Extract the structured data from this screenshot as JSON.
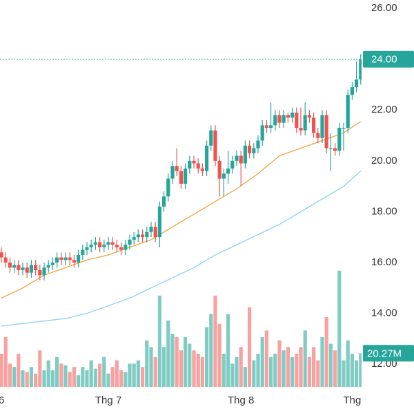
{
  "chart_data": {
    "type": "candlestick",
    "categories": [
      "6",
      null,
      null,
      null,
      null,
      null,
      null,
      null,
      null,
      null,
      null,
      null,
      null,
      null,
      null,
      null,
      null,
      null,
      null,
      null,
      null,
      null,
      null,
      null,
      null,
      "Thg 7",
      null,
      null,
      null,
      null,
      null,
      null,
      null,
      null,
      null,
      null,
      null,
      null,
      null,
      null,
      null,
      null,
      null,
      null,
      null,
      null,
      null,
      null,
      null,
      null,
      null,
      null,
      null,
      null,
      null,
      null,
      "Thg 8",
      null,
      null,
      null,
      null,
      null,
      null,
      null,
      null,
      null,
      null,
      null,
      null,
      null,
      null,
      null,
      null,
      null,
      null,
      null,
      null,
      null,
      null,
      null,
      null,
      null,
      "Thg",
      null,
      null
    ],
    "open": [
      16.4,
      16.2,
      16.0,
      15.8,
      15.9,
      15.7,
      15.8,
      15.6,
      15.9,
      15.7,
      15.5,
      15.8,
      15.9,
      16.0,
      16.2,
      16.1,
      16.2,
      16.1,
      16.0,
      16.3,
      16.5,
      16.6,
      16.7,
      16.8,
      16.6,
      16.7,
      16.8,
      16.7,
      16.6,
      16.5,
      16.7,
      16.9,
      17.0,
      17.1,
      17.0,
      17.2,
      17.4,
      17.0,
      18.2,
      18.6,
      19.3,
      19.8,
      19.6,
      19.1,
      19.7,
      20.0,
      19.9,
      19.7,
      19.6,
      20.6,
      21.2,
      20.0,
      19.3,
      19.5,
      19.7,
      20.0,
      20.2,
      19.9,
      20.6,
      20.3,
      20.5,
      20.8,
      21.4,
      21.3,
      21.4,
      21.8,
      21.5,
      21.8,
      21.7,
      21.9,
      21.3,
      21.2,
      21.8,
      21.7,
      21.1,
      20.9,
      21.8,
      20.5,
      20.5,
      20.4,
      21.3,
      21.3,
      22.6,
      22.9,
      23.2
    ],
    "high": [
      16.6,
      16.4,
      16.2,
      16.1,
      16.1,
      16.0,
      16.0,
      16.1,
      16.1,
      15.9,
      16.0,
      16.1,
      16.2,
      16.4,
      16.4,
      16.4,
      16.4,
      16.3,
      16.5,
      16.7,
      16.8,
      16.9,
      17.0,
      17.0,
      16.9,
      17.0,
      17.0,
      16.9,
      16.8,
      16.9,
      17.1,
      17.2,
      17.3,
      17.3,
      17.4,
      17.6,
      17.6,
      18.4,
      18.8,
      19.5,
      20.0,
      20.5,
      19.8,
      19.9,
      20.2,
      20.2,
      20.1,
      19.9,
      20.8,
      21.4,
      21.4,
      20.2,
      19.7,
      20.4,
      20.2,
      20.4,
      20.4,
      20.8,
      20.8,
      20.7,
      21.0,
      21.6,
      21.6,
      22.3,
      22.0,
      22.0,
      22.0,
      21.9,
      22.1,
      22.1,
      22.1,
      22.3,
      22.0,
      21.9,
      21.3,
      22.0,
      22.0,
      21.1,
      20.7,
      21.5,
      21.5,
      22.8,
      23.1,
      23.9,
      24.2
    ],
    "low": [
      16.0,
      15.8,
      15.6,
      15.6,
      15.5,
      15.5,
      15.4,
      15.4,
      15.5,
      15.3,
      15.3,
      15.6,
      15.7,
      15.8,
      15.9,
      15.9,
      15.9,
      15.8,
      15.8,
      16.1,
      16.3,
      16.4,
      16.5,
      16.4,
      16.4,
      16.5,
      16.5,
      16.4,
      16.3,
      16.3,
      16.5,
      16.7,
      16.8,
      16.8,
      16.8,
      17.0,
      16.8,
      16.6,
      18.0,
      18.4,
      19.1,
      19.4,
      18.9,
      18.9,
      19.5,
      19.7,
      19.5,
      19.4,
      19.4,
      20.4,
      19.8,
      18.6,
      18.6,
      19.1,
      19.5,
      19.8,
      19.0,
      19.7,
      20.1,
      20.1,
      20.3,
      20.6,
      21.1,
      21.1,
      21.2,
      21.3,
      21.3,
      21.5,
      21.5,
      21.1,
      21.0,
      21.0,
      21.5,
      20.9,
      20.7,
      20.7,
      20.3,
      19.6,
      20.2,
      20.2,
      20.4,
      21.1,
      22.4,
      22.7,
      23.0
    ],
    "close": [
      16.2,
      16.0,
      15.8,
      15.9,
      15.7,
      15.8,
      15.6,
      15.9,
      15.7,
      15.5,
      15.8,
      15.9,
      16.0,
      16.2,
      16.1,
      16.2,
      16.1,
      16.0,
      16.3,
      16.5,
      16.6,
      16.7,
      16.8,
      16.6,
      16.7,
      16.8,
      16.7,
      16.6,
      16.5,
      16.7,
      16.9,
      17.0,
      17.1,
      17.0,
      17.2,
      17.4,
      17.0,
      18.2,
      18.6,
      19.3,
      19.8,
      19.6,
      19.1,
      19.7,
      20.0,
      19.9,
      19.7,
      19.6,
      20.6,
      21.2,
      20.0,
      19.3,
      19.5,
      19.7,
      20.0,
      20.2,
      19.9,
      20.6,
      20.3,
      20.5,
      20.8,
      21.4,
      21.3,
      21.4,
      21.8,
      21.5,
      21.8,
      21.7,
      21.9,
      21.3,
      21.2,
      21.8,
      21.7,
      21.1,
      20.9,
      21.8,
      20.5,
      20.5,
      20.4,
      21.3,
      21.3,
      22.6,
      22.9,
      23.2,
      24.0
    ],
    "up_color": "#26a69a",
    "down_color": "#ef5350",
    "ylim": [
      10.97,
      26.33
    ],
    "yticks": [
      {
        "value": 12,
        "label": "12.00"
      },
      {
        "value": 14,
        "label": "14.00"
      },
      {
        "value": 16,
        "label": "16.00"
      },
      {
        "value": 18,
        "label": "18.00"
      },
      {
        "value": 20,
        "label": "20.00"
      },
      {
        "value": 22,
        "label": "22.00"
      },
      {
        "value": 24,
        "label": "24.00"
      },
      {
        "value": 26,
        "label": "26.00"
      }
    ],
    "last_price": {
      "value": 24,
      "label": "24.00"
    },
    "volume": {
      "values": [
        20,
        30,
        14,
        12,
        20,
        10,
        9,
        12,
        8,
        22,
        10,
        16,
        10,
        18,
        14,
        13,
        9,
        12,
        7,
        12,
        10,
        16,
        11,
        14,
        18,
        8,
        12,
        16,
        10,
        9,
        14,
        14,
        16,
        12,
        28,
        24,
        18,
        55,
        24,
        40,
        32,
        30,
        22,
        30,
        26,
        22,
        20,
        18,
        36,
        44,
        55,
        38,
        20,
        44,
        14,
        18,
        24,
        12,
        48,
        16,
        20,
        30,
        34,
        18,
        20,
        28,
        22,
        24,
        18,
        20,
        24,
        34,
        18,
        24,
        16,
        30,
        42,
        26,
        22,
        70,
        16,
        28,
        20,
        16,
        20.27
      ],
      "up_color": "#80cbc4",
      "down_color": "#f7a1a1",
      "ylim": [
        0,
        233
      ]
    },
    "last_volume": {
      "value": 20.27,
      "label": "20.27M"
    },
    "ma_lines": [
      {
        "color": "#f0a94a",
        "x": [
          0,
          5,
          10,
          15,
          20,
          25,
          30,
          35,
          40,
          45,
          50,
          55,
          60,
          65,
          70,
          75,
          80,
          84
        ],
        "values": [
          14.6,
          15.0,
          15.5,
          15.8,
          16.1,
          16.3,
          16.6,
          16.9,
          17.4,
          17.9,
          18.4,
          18.9,
          19.5,
          20.2,
          20.5,
          20.8,
          21.1,
          21.55
        ]
      },
      {
        "color": "#8fd3f4",
        "x": [
          0,
          5,
          10,
          15,
          20,
          25,
          30,
          35,
          40,
          45,
          50,
          55,
          60,
          65,
          70,
          75,
          80,
          84
        ],
        "values": [
          13.5,
          13.6,
          13.7,
          13.8,
          14.0,
          14.3,
          14.6,
          15.0,
          15.4,
          15.8,
          16.3,
          16.7,
          17.1,
          17.5,
          18.0,
          18.5,
          19.0,
          19.6
        ]
      }
    ]
  }
}
